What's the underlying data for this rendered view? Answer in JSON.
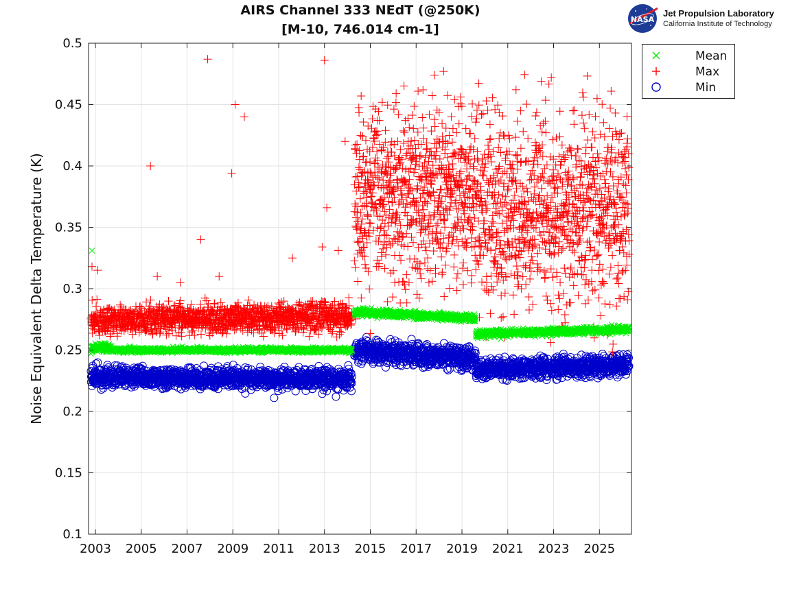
{
  "header": {
    "title_line1": "AIRS Channel 333 NEdT (@250K)",
    "title_line2": "[M-10, 746.014 cm-1]"
  },
  "logo": {
    "org_name": "Jet Propulsion Laboratory",
    "org_subtitle": "California Institute of Technology",
    "badge_text": "NASA"
  },
  "colors": {
    "mean": "#00ee00",
    "max": "#ff0000",
    "min": "#0000cc",
    "grid": "#e3e3e3",
    "axis": "#222222"
  },
  "chart_data": {
    "type": "scatter",
    "title": "AIRS Channel 333 NEdT (@250K)\n[M-10, 746.014 cm-1]",
    "xlabel": "",
    "ylabel": "Noise Equivalent Delta Temperature (K)",
    "xlim": [
      2002.7,
      2026.4
    ],
    "ylim": [
      0.1,
      0.5
    ],
    "x_ticks": [
      2003,
      2005,
      2007,
      2009,
      2011,
      2013,
      2015,
      2017,
      2019,
      2021,
      2023,
      2025
    ],
    "x_tick_labels": [
      "2003",
      "2005",
      "2007",
      "2009",
      "2011",
      "2013",
      "2015",
      "2017",
      "2019",
      "2021",
      "2023",
      "2025"
    ],
    "y_ticks": [
      0.1,
      0.15,
      0.2,
      0.25,
      0.3,
      0.35,
      0.4,
      0.45,
      0.5
    ],
    "y_tick_labels": [
      "0.1",
      "0.15",
      "0.2",
      "0.25",
      "0.3",
      "0.35",
      "0.4",
      "0.45",
      "0.5"
    ],
    "grid": true,
    "legend_position": "outside-top-right",
    "series": [
      {
        "name": "Mean",
        "marker": "x",
        "color": "#00ee00",
        "segments": [
          {
            "x_start": 2002.8,
            "x_end": 2003.7,
            "y": 0.252,
            "spread": 0.004
          },
          {
            "x_start": 2003.7,
            "x_end": 2014.2,
            "y": 0.25,
            "spread": 0.002
          },
          {
            "x_start": 2014.3,
            "x_end": 2019.6,
            "y_start": 0.281,
            "y_end": 0.276,
            "spread": 0.003
          },
          {
            "x_start": 2019.6,
            "x_end": 2026.3,
            "y_start": 0.263,
            "y_end": 0.267,
            "spread": 0.003
          }
        ],
        "points": [
          {
            "x": 2002.85,
            "y": 0.331
          },
          {
            "x": 2002.8,
            "y": 0.247
          },
          {
            "x": 2020.7,
            "y": 0.259
          }
        ]
      },
      {
        "name": "Max",
        "marker": "+",
        "color": "#ff0000",
        "segments": [
          {
            "x_start": 2002.8,
            "x_end": 2014.2,
            "y_start": 0.275,
            "y_end": 0.277,
            "spread": 0.012
          },
          {
            "x_start": 2014.3,
            "x_end": 2019.6,
            "y": 0.375,
            "spread": 0.07
          },
          {
            "x_start": 2019.6,
            "x_end": 2026.3,
            "y": 0.365,
            "spread": 0.075
          }
        ],
        "points": [
          {
            "x": 2002.85,
            "y": 0.318
          },
          {
            "x": 2003.1,
            "y": 0.315
          },
          {
            "x": 2005.4,
            "y": 0.4
          },
          {
            "x": 2005.7,
            "y": 0.31
          },
          {
            "x": 2006.7,
            "y": 0.305
          },
          {
            "x": 2007.6,
            "y": 0.34
          },
          {
            "x": 2007.9,
            "y": 0.487
          },
          {
            "x": 2008.4,
            "y": 0.31
          },
          {
            "x": 2008.95,
            "y": 0.394
          },
          {
            "x": 2009.1,
            "y": 0.45
          },
          {
            "x": 2009.5,
            "y": 0.44
          },
          {
            "x": 2011.6,
            "y": 0.325
          },
          {
            "x": 2012.9,
            "y": 0.334
          },
          {
            "x": 2013.0,
            "y": 0.486
          },
          {
            "x": 2013.1,
            "y": 0.366
          },
          {
            "x": 2013.6,
            "y": 0.331
          },
          {
            "x": 2013.9,
            "y": 0.42
          },
          {
            "x": 2014.6,
            "y": 0.457
          },
          {
            "x": 2017.3,
            "y": 0.462
          },
          {
            "x": 2017.8,
            "y": 0.474
          },
          {
            "x": 2018.2,
            "y": 0.477
          },
          {
            "x": 2022.9,
            "y": 0.472
          },
          {
            "x": 2024.3,
            "y": 0.456
          }
        ]
      },
      {
        "name": "Min",
        "marker": "o",
        "color": "#0000cc",
        "segments": [
          {
            "x_start": 2002.8,
            "x_end": 2014.2,
            "y_start": 0.228,
            "y_end": 0.226,
            "spread": 0.008
          },
          {
            "x_start": 2014.3,
            "x_end": 2019.6,
            "y_start": 0.249,
            "y_end": 0.243,
            "spread": 0.009
          },
          {
            "x_start": 2019.6,
            "x_end": 2026.3,
            "y_start": 0.234,
            "y_end": 0.238,
            "spread": 0.008
          }
        ],
        "points": [
          {
            "x": 2010.8,
            "y": 0.211
          },
          {
            "x": 2013.5,
            "y": 0.212
          },
          {
            "x": 2016.8,
            "y": 0.259
          }
        ]
      }
    ]
  }
}
